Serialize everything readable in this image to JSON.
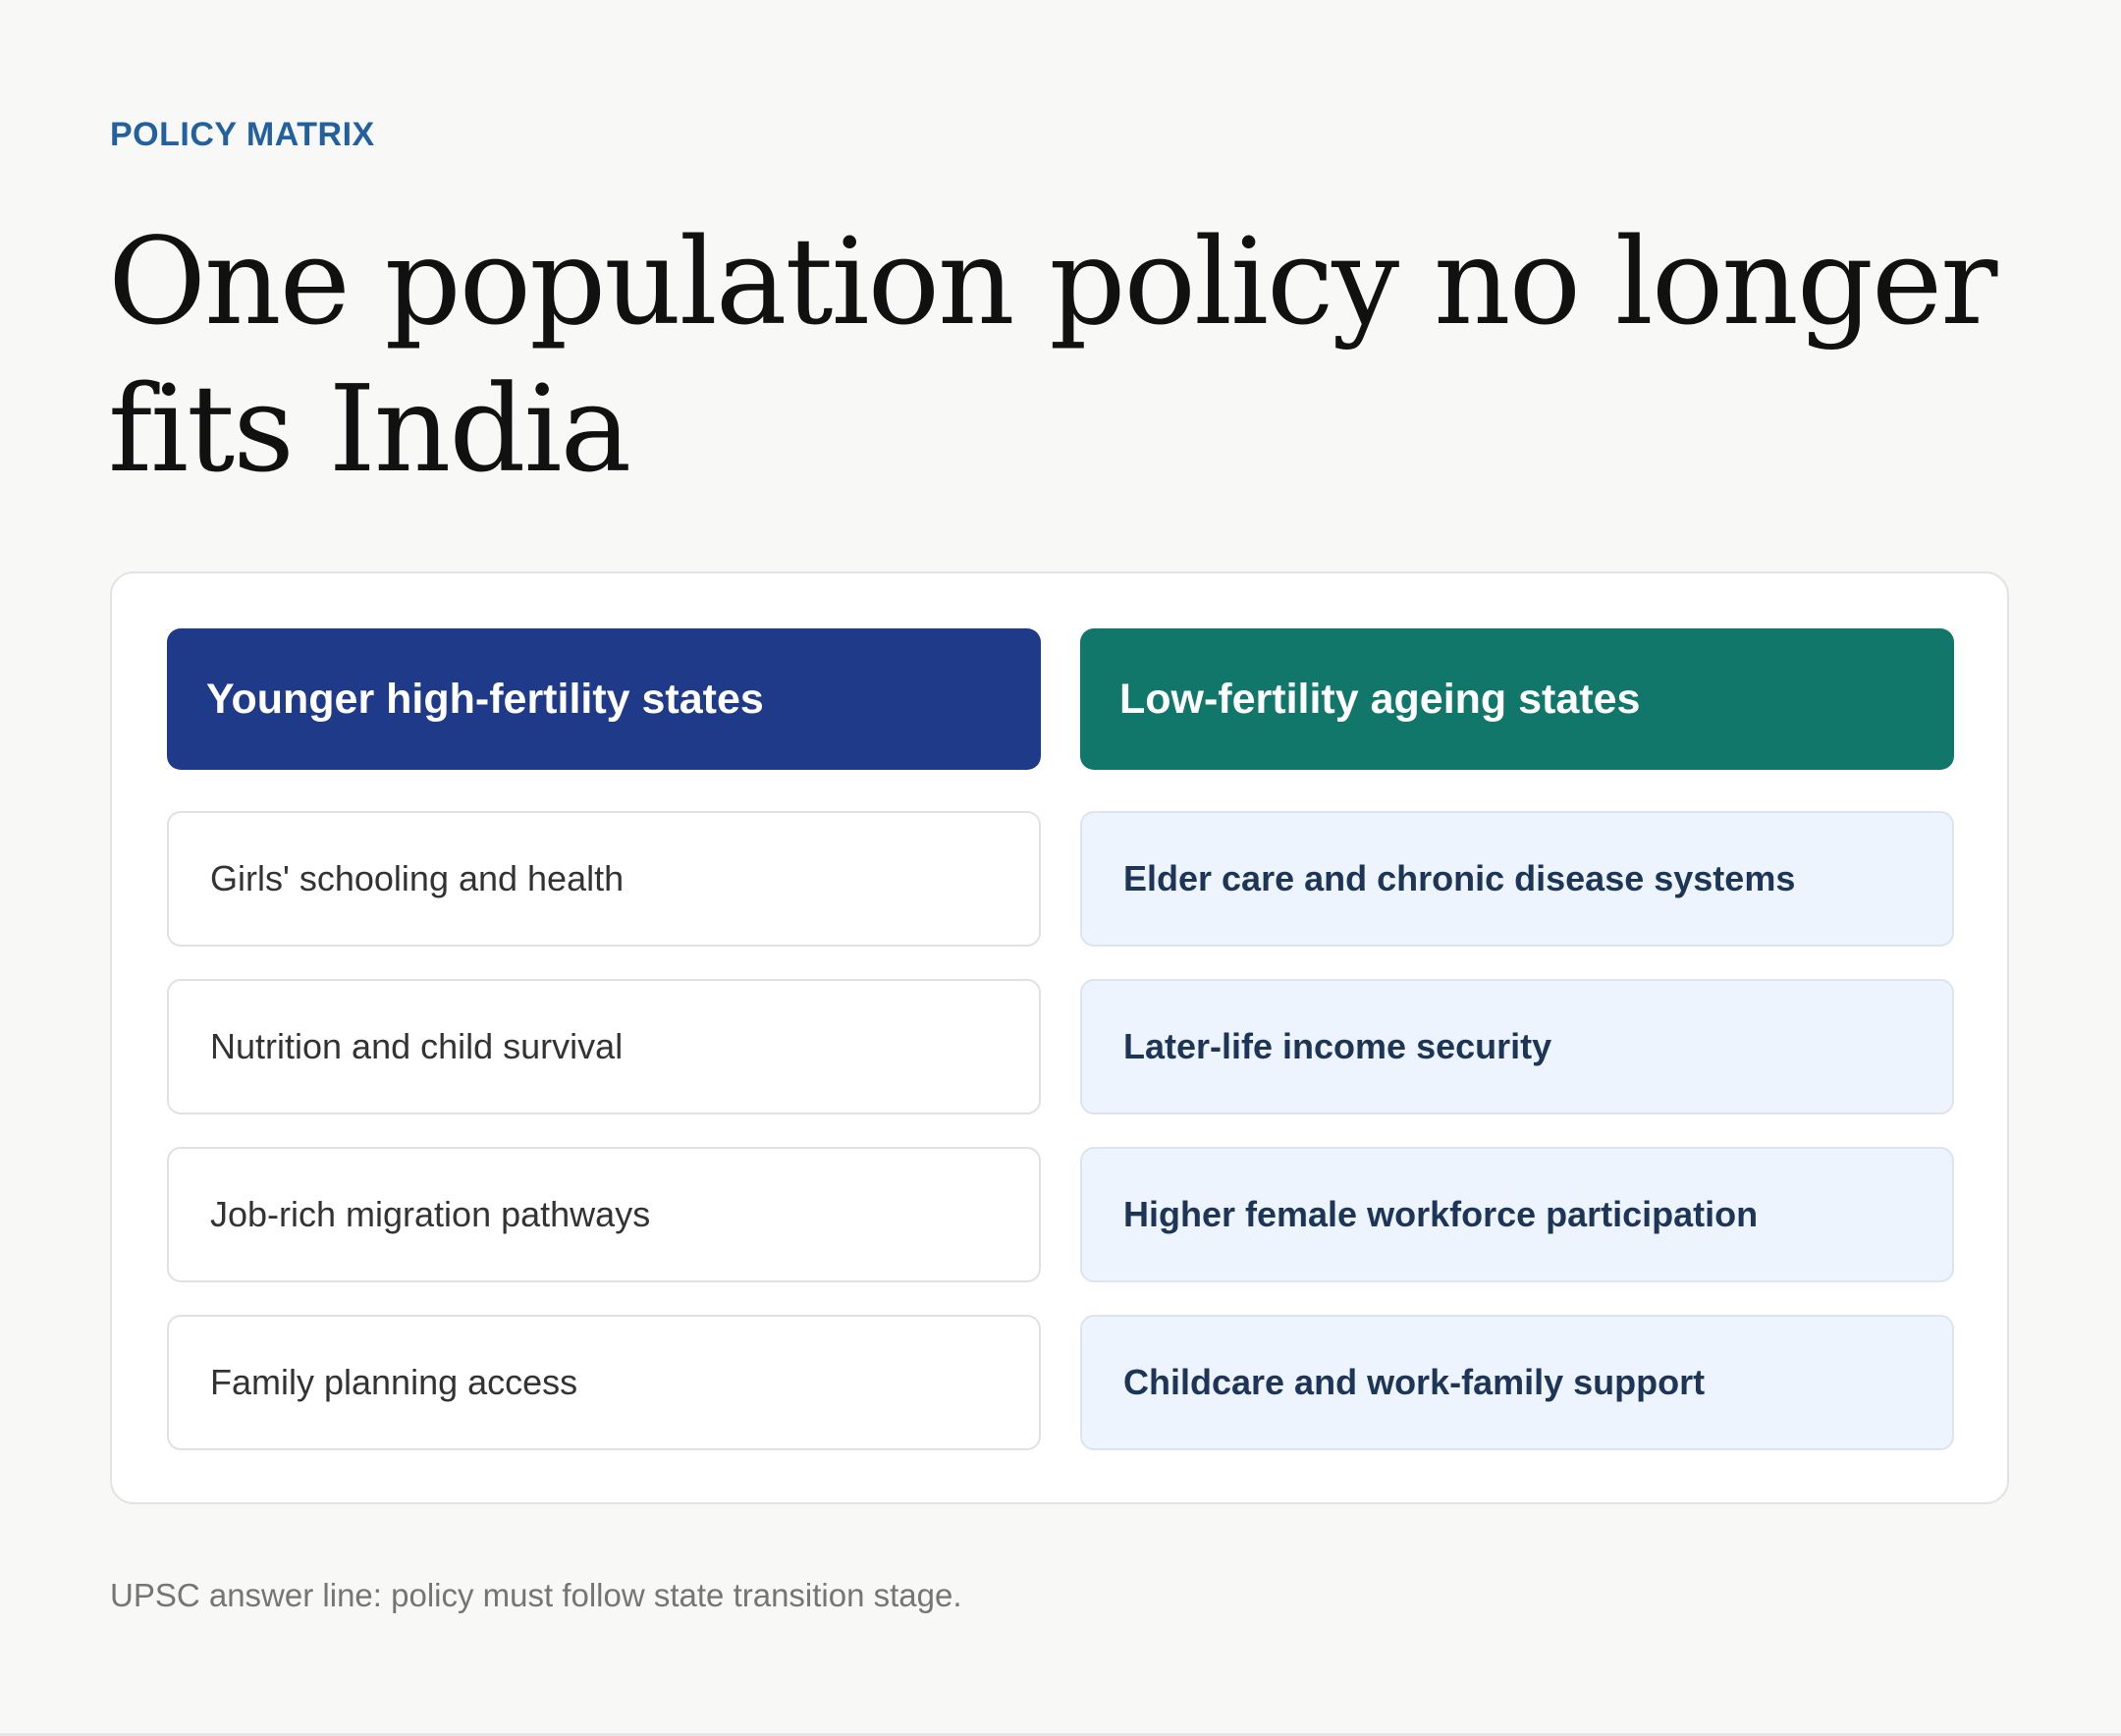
{
  "eyebrow": "POLICY MATRIX",
  "headline": "One population policy no longer fits India",
  "matrix": {
    "left_column": {
      "header": "Younger high-fertility states",
      "items": [
        "Girls' schooling and health",
        "Nutrition and child survival",
        "Job-rich migration pathways",
        "Family planning access"
      ]
    },
    "right_column": {
      "header": "Low-fertility ageing states",
      "items": [
        "Elder care and chronic disease systems",
        "Later-life income security",
        "Higher female workforce participation",
        "Childcare and work-family support"
      ]
    }
  },
  "footnote": "UPSC answer line: policy must follow state transition stage.",
  "colors": {
    "accent": "#23609e",
    "left_header": "#1f3a88",
    "right_header": "#12776b",
    "right_cell_bg": "#edf4fd",
    "right_cell_text": "#1d3557",
    "page_bg": "#f8f8f6"
  }
}
